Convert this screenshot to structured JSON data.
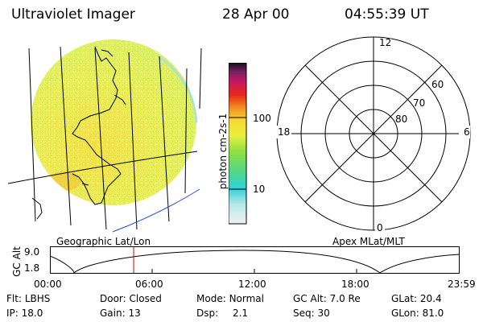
{
  "header": {
    "instrument": "Ultraviolet Imager",
    "date": "28 Apr 00",
    "time": "04:55:39 UT"
  },
  "colorbar": {
    "label": "photon cm-2s-1",
    "ticks": [
      "100",
      "10"
    ]
  },
  "polar": {
    "mlt_labels": {
      "top": "12",
      "left": "18",
      "right": "6",
      "bottom": "0"
    },
    "lat_labels": [
      "60",
      "70",
      "80"
    ]
  },
  "projection_labels": {
    "left": "Geographic Lat/Lon",
    "right": "Apex MLat/MLT"
  },
  "altitude_plot": {
    "ylabel": "GC Alt",
    "yticks": [
      "9.0",
      "1.8"
    ],
    "xticks": [
      "00:00",
      "06:00",
      "12:00",
      "18:00",
      "23:59"
    ],
    "marker_time": "04:55:39"
  },
  "info": {
    "flt_label": "Flt:",
    "flt_value": "LBHS",
    "door_label": "Door:",
    "door_value": "Closed",
    "mode_label": "Mode:",
    "mode_value": "Normal",
    "gcalt_label": "GC Alt:",
    "gcalt_value": "7.0 Re",
    "glat_label": "GLat:",
    "glat_value": "20.4",
    "ip_label": "IP:",
    "ip_value": "18.0",
    "gain_label": "Gain:",
    "gain_value": "13",
    "dsp_label": "Dsp:",
    "dsp_value": "2.1",
    "seq_label": "Seq:",
    "seq_value": "30",
    "glon_label": "GLon:",
    "glon_value": "81.0"
  },
  "colors": {
    "disk_main": "#e6ef5a",
    "disk_bright": "#f2e43a",
    "marker": "#dd0000",
    "coast": "#000000",
    "equator_line": "#2244dd"
  }
}
